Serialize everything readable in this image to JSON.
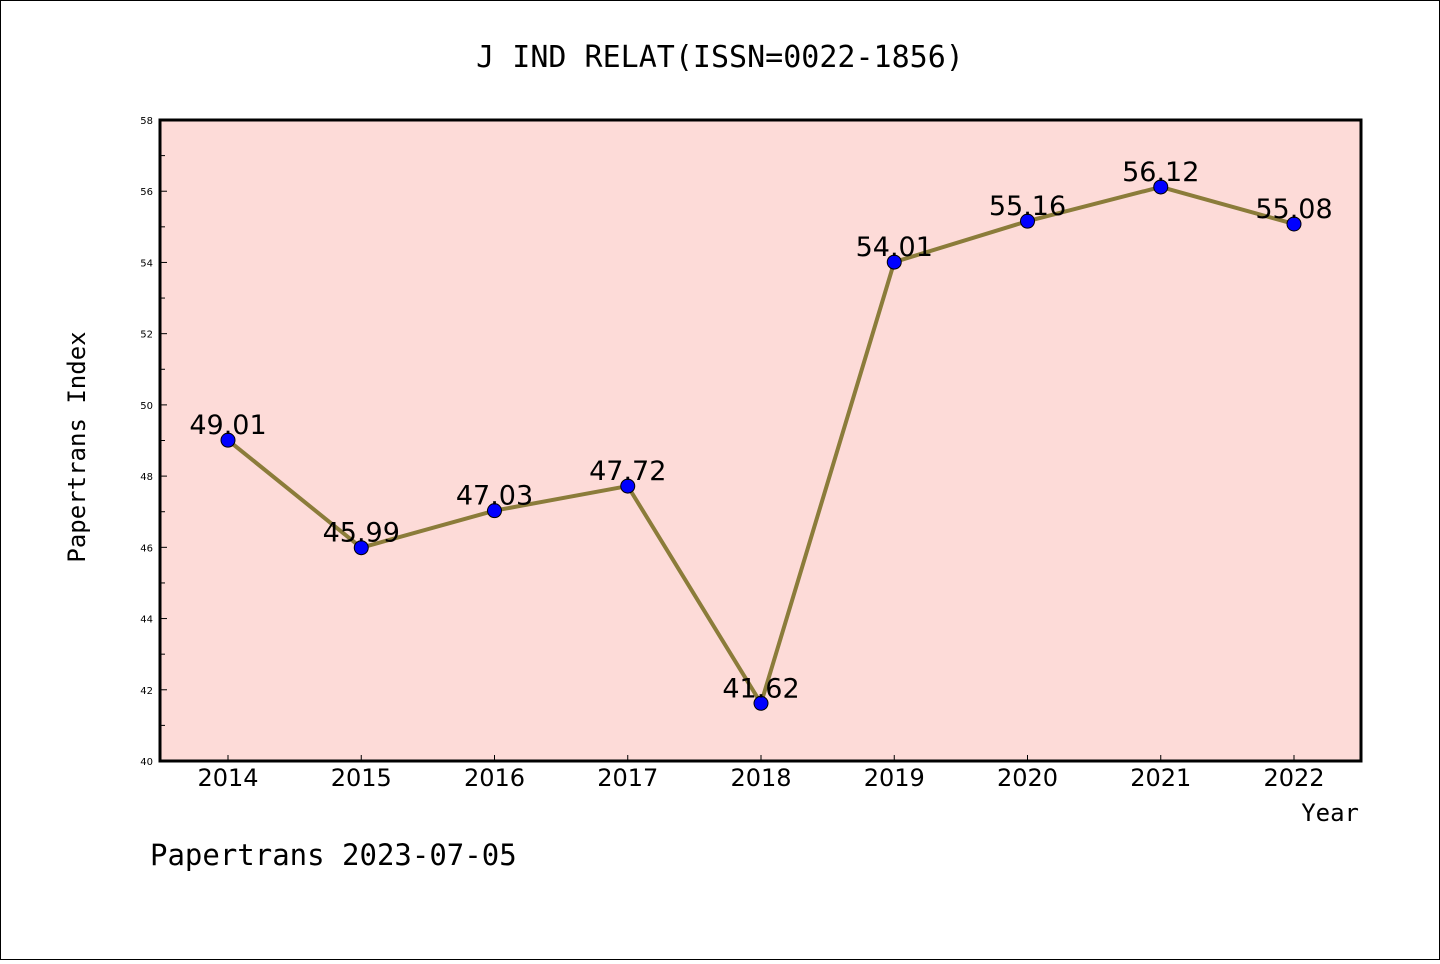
{
  "chart_data": {
    "type": "line",
    "title": "J IND RELAT(ISSN=0022-1856)",
    "xlabel": "Year",
    "ylabel": "Papertrans Index",
    "x": [
      "2014",
      "2015",
      "2016",
      "2017",
      "2018",
      "2019",
      "2020",
      "2021",
      "2022"
    ],
    "values": [
      49.01,
      45.99,
      47.03,
      47.72,
      41.62,
      54.01,
      55.16,
      56.12,
      55.08
    ],
    "data_labels": [
      "49.01",
      "45.99",
      "47.03",
      "47.72",
      "41.62",
      "54.01",
      "55.16",
      "56.12",
      "55.08"
    ],
    "ylim": [
      40,
      58
    ],
    "yticks": [
      "40",
      "42",
      "44",
      "46",
      "48",
      "50",
      "52",
      "54",
      "56",
      "58"
    ],
    "grid": false,
    "legend": "none"
  },
  "footer": "Papertrans 2023-07-05",
  "colors": {
    "plot_background": "#fddbd8",
    "line": "#8b7c3a",
    "marker": "#0000ff"
  }
}
